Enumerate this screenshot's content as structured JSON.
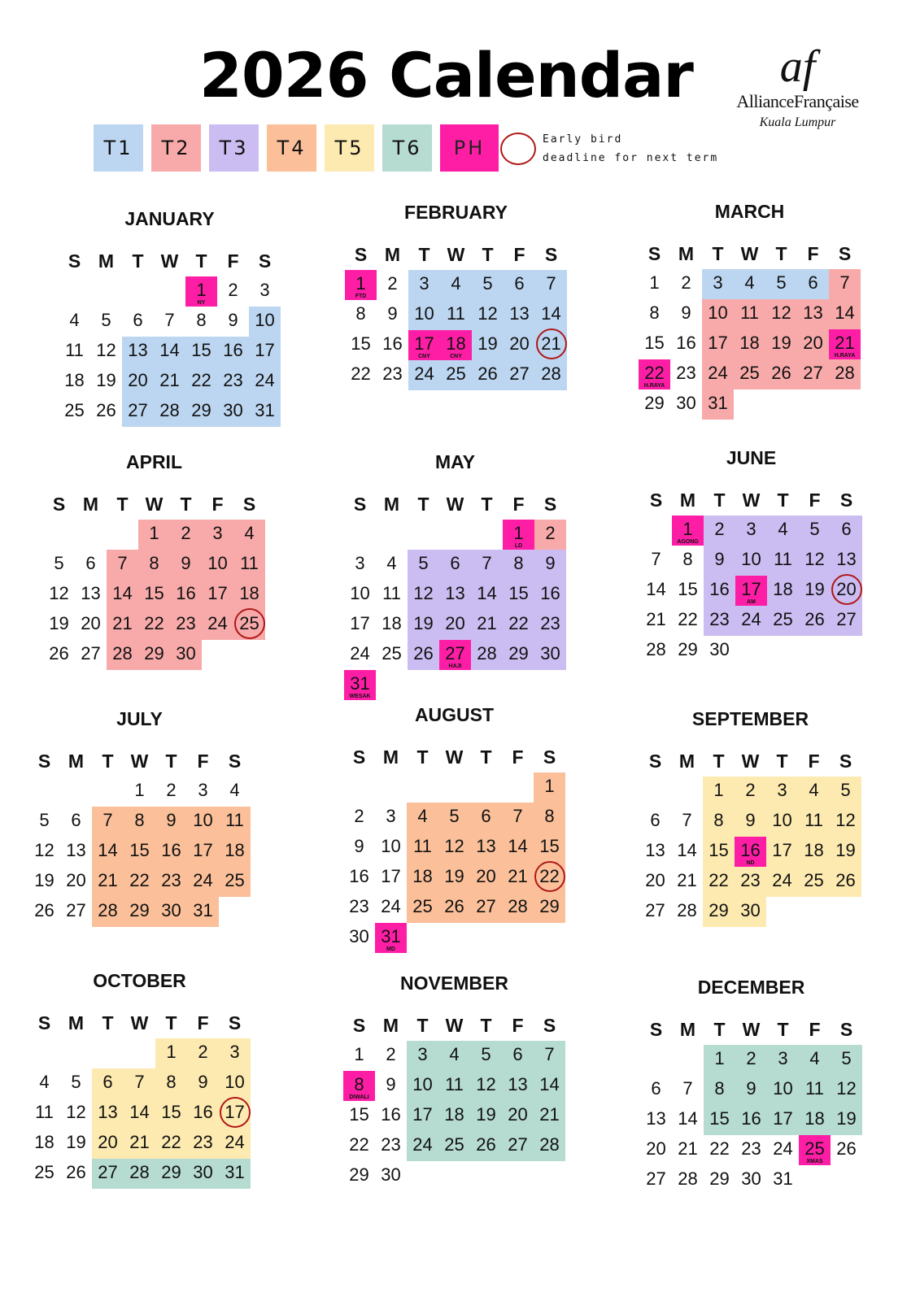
{
  "title": "2026 Calendar",
  "logo": {
    "mark": "af",
    "name": "AllianceFrançaise",
    "city": "Kuala Lumpur"
  },
  "colors": {
    "T1": "#bcd6f1",
    "T2": "#f8aaaa",
    "T3": "#cbbdf1",
    "T4": "#fbc09a",
    "T5": "#fdeab0",
    "T6": "#b6dbd0",
    "PH": "#fe1ea6",
    "circle": "#b01818"
  },
  "legend": {
    "items": [
      {
        "key": "T1",
        "label": "T1"
      },
      {
        "key": "T2",
        "label": "T2"
      },
      {
        "key": "T3",
        "label": "T3"
      },
      {
        "key": "T4",
        "label": "T4"
      },
      {
        "key": "T5",
        "label": "T5"
      },
      {
        "key": "T6",
        "label": "T6"
      },
      {
        "key": "PH",
        "label": "PH"
      }
    ],
    "early_bird_line1": "Early bird",
    "early_bird_line2": "deadline for next term"
  },
  "weekdays": [
    "S",
    "M",
    "T",
    "W",
    "T",
    "F",
    "S"
  ],
  "months": [
    {
      "name": "JANUARY",
      "first_weekday": 4,
      "days": 31,
      "terms": {
        "T1": [
          10,
          13,
          14,
          15,
          16,
          17,
          20,
          21,
          22,
          23,
          24,
          27,
          28,
          29,
          30,
          31
        ]
      },
      "holidays": [
        {
          "day": 1,
          "label": "NY"
        }
      ],
      "circled": []
    },
    {
      "name": "FEBRUARY",
      "first_weekday": 0,
      "days": 28,
      "terms": {
        "T1": [
          3,
          4,
          5,
          6,
          7,
          10,
          11,
          12,
          13,
          14,
          19,
          20,
          21,
          24,
          25,
          26,
          27,
          28
        ]
      },
      "holidays": [
        {
          "day": 1,
          "label": "FTD"
        },
        {
          "day": 17,
          "label": "CNY"
        },
        {
          "day": 18,
          "label": "CNY"
        }
      ],
      "circled": [
        21
      ]
    },
    {
      "name": "MARCH",
      "first_weekday": 0,
      "days": 31,
      "terms": {
        "T1": [
          3,
          4,
          5,
          6
        ],
        "T2": [
          7,
          10,
          11,
          12,
          13,
          14,
          17,
          18,
          19,
          20,
          24,
          25,
          26,
          27,
          28,
          31
        ]
      },
      "holidays": [
        {
          "day": 21,
          "label": "H.RAYA"
        },
        {
          "day": 22,
          "label": "H.RAYA"
        }
      ],
      "circled": []
    },
    {
      "name": "APRIL",
      "first_weekday": 3,
      "days": 30,
      "terms": {
        "T2": [
          1,
          2,
          3,
          4,
          7,
          8,
          9,
          10,
          11,
          14,
          15,
          16,
          17,
          18,
          21,
          22,
          23,
          24,
          25,
          28,
          29,
          30
        ]
      },
      "holidays": [],
      "circled": [
        25
      ]
    },
    {
      "name": "MAY",
      "first_weekday": 5,
      "days": 31,
      "terms": {
        "T2": [
          2
        ],
        "T3": [
          5,
          6,
          7,
          8,
          9,
          12,
          13,
          14,
          15,
          16,
          19,
          20,
          21,
          22,
          23,
          26,
          28,
          29,
          30
        ]
      },
      "holidays": [
        {
          "day": 1,
          "label": "LD"
        },
        {
          "day": 27,
          "label": "HAJI"
        },
        {
          "day": 31,
          "label": "WESAK"
        }
      ],
      "circled": []
    },
    {
      "name": "JUNE",
      "first_weekday": 1,
      "days": 30,
      "terms": {
        "T3": [
          2,
          3,
          4,
          5,
          6,
          9,
          10,
          11,
          12,
          13,
          16,
          18,
          19,
          20,
          23,
          24,
          25,
          26,
          27
        ]
      },
      "holidays": [
        {
          "day": 1,
          "label": "AGONG"
        },
        {
          "day": 17,
          "label": "AM"
        }
      ],
      "circled": [
        20
      ]
    },
    {
      "name": "JULY",
      "first_weekday": 3,
      "days": 31,
      "terms": {
        "T4": [
          7,
          8,
          9,
          10,
          11,
          14,
          15,
          16,
          17,
          18,
          21,
          22,
          23,
          24,
          25,
          28,
          29,
          30,
          31
        ]
      },
      "holidays": [],
      "circled": []
    },
    {
      "name": "AUGUST",
      "first_weekday": 6,
      "days": 31,
      "terms": {
        "T4": [
          1,
          4,
          5,
          6,
          7,
          8,
          11,
          12,
          13,
          14,
          15,
          18,
          19,
          20,
          21,
          22,
          25,
          26,
          27,
          28,
          29
        ]
      },
      "holidays": [
        {
          "day": 31,
          "label": "MD"
        }
      ],
      "circled": [
        22
      ]
    },
    {
      "name": "SEPTEMBER",
      "first_weekday": 2,
      "days": 30,
      "terms": {
        "T5": [
          1,
          2,
          3,
          4,
          5,
          8,
          9,
          10,
          11,
          12,
          15,
          17,
          18,
          19,
          22,
          23,
          24,
          25,
          26,
          29,
          30
        ]
      },
      "holidays": [
        {
          "day": 16,
          "label": "ND"
        }
      ],
      "circled": []
    },
    {
      "name": "OCTOBER",
      "first_weekday": 4,
      "days": 31,
      "terms": {
        "T5": [
          1,
          2,
          3,
          6,
          7,
          8,
          9,
          10,
          13,
          14,
          15,
          16,
          17,
          20,
          21,
          22,
          23,
          24
        ],
        "T6": [
          27,
          28,
          29,
          30,
          31
        ]
      },
      "holidays": [],
      "circled": [
        17
      ]
    },
    {
      "name": "NOVEMBER",
      "first_weekday": 0,
      "days": 30,
      "terms": {
        "T6": [
          3,
          4,
          5,
          6,
          7,
          10,
          11,
          12,
          13,
          14,
          17,
          18,
          19,
          20,
          21,
          24,
          25,
          26,
          27,
          28
        ]
      },
      "holidays": [
        {
          "day": 8,
          "label": "DIWALI"
        }
      ],
      "circled": []
    },
    {
      "name": "DECEMBER",
      "first_weekday": 2,
      "days": 31,
      "terms": {
        "T6": [
          1,
          2,
          3,
          4,
          5,
          8,
          9,
          10,
          11,
          12,
          15,
          16,
          17,
          18,
          19
        ]
      },
      "holidays": [
        {
          "day": 25,
          "label": "XMAS"
        }
      ],
      "circled": []
    }
  ]
}
